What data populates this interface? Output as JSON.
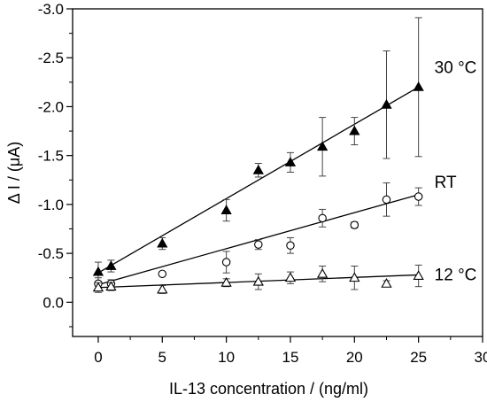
{
  "chart_data": {
    "type": "scatter",
    "title": "",
    "xlabel": "IL-13 concentration / (ng/ml)",
    "ylabel": "Δ I / (μA)",
    "xlim": [
      -2,
      30
    ],
    "ylim": [
      0.35,
      -3.0
    ],
    "y_axis_direction": "inverted",
    "xticks": [
      0,
      5,
      10,
      15,
      20,
      25,
      30
    ],
    "yticks": [
      0.0,
      -0.5,
      -1.0,
      -1.5,
      -2.0,
      -2.5,
      -3.0
    ],
    "xtick_labels": [
      "0",
      "5",
      "10",
      "15",
      "20",
      "25",
      "30"
    ],
    "ytick_labels": [
      "0.0",
      "-0.5",
      "-1.0",
      "-1.5",
      "-2.0",
      "-2.5",
      "-3.0"
    ],
    "grid": false,
    "legend": "none (series labels placed next to fitted lines)",
    "series": [
      {
        "name": "30 °C",
        "marker": "filled-triangle",
        "x": [
          0,
          1,
          5,
          10,
          12.5,
          15,
          17.5,
          20,
          22.5,
          25
        ],
        "y": [
          -0.31,
          -0.37,
          -0.6,
          -0.94,
          -1.35,
          -1.43,
          -1.59,
          -1.75,
          -2.02,
          -2.2
        ],
        "yerr": [
          0.1,
          0.06,
          0.06,
          0.11,
          0.07,
          0.1,
          0.3,
          0.14,
          0.55,
          0.71
        ],
        "fit": {
          "x": [
            0,
            25
          ],
          "y": [
            -0.3,
            -2.2
          ]
        }
      },
      {
        "name": "RT",
        "marker": "open-circle",
        "x": [
          0,
          1,
          5,
          10,
          12.5,
          15,
          17.5,
          20,
          22.5,
          25
        ],
        "y": [
          -0.19,
          -0.19,
          -0.29,
          -0.41,
          -0.59,
          -0.58,
          -0.86,
          -0.79,
          -1.05,
          -1.08
        ],
        "yerr": [
          0.06,
          0.04,
          0.02,
          0.11,
          0.05,
          0.08,
          0.09,
          0.03,
          0.17,
          0.09
        ],
        "fit": {
          "x": [
            0,
            25
          ],
          "y": [
            -0.18,
            -1.1
          ]
        }
      },
      {
        "name": "12 °C",
        "marker": "open-triangle",
        "x": [
          0,
          1,
          5,
          10,
          12.5,
          15,
          17.5,
          20,
          22.5,
          25
        ],
        "y": [
          -0.15,
          -0.16,
          -0.13,
          -0.2,
          -0.21,
          -0.25,
          -0.29,
          -0.25,
          -0.19,
          -0.27
        ],
        "yerr": [
          0.05,
          0.04,
          0.04,
          0.04,
          0.08,
          0.06,
          0.08,
          0.12,
          0.03,
          0.11
        ],
        "fit": {
          "x": [
            0,
            25
          ],
          "y": [
            -0.15,
            -0.28
          ]
        }
      }
    ]
  }
}
